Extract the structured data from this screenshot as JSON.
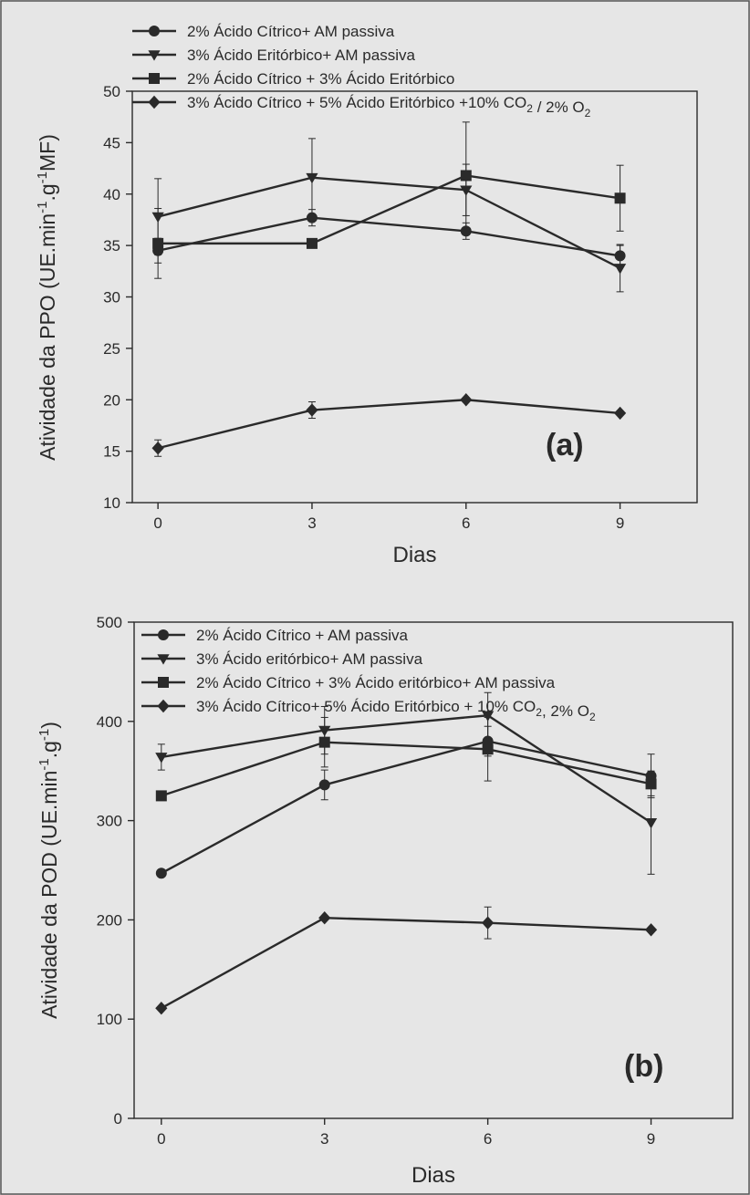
{
  "colors": {
    "background": "#e6e6e6",
    "ink": "#2a2a2a",
    "border": "#555555"
  },
  "chart_data": [
    {
      "type": "line",
      "panel_label": "(a)",
      "xlabel": "Dias",
      "ylabel_parts": [
        "Atividade da PPO (UE.min",
        "-1",
        ".g",
        "-1",
        "MF)"
      ],
      "xlim": [
        -0.5,
        10.5
      ],
      "ylim": [
        10,
        50
      ],
      "xticks": [
        0,
        3,
        6,
        9
      ],
      "yticks": [
        10,
        15,
        20,
        25,
        30,
        35,
        40,
        45,
        50
      ],
      "legend_position": "top-left",
      "x": [
        0,
        3,
        6,
        9
      ],
      "series": [
        {
          "name": "2% Ácido Cítrico+ AM passiva",
          "name_parts": [
            [
              "2% Ácido Cítrico+ AM passiva",
              ""
            ]
          ],
          "marker": "circle",
          "values": [
            34.5,
            37.7,
            36.4,
            34.0
          ],
          "errors": [
            1.2,
            0.8,
            0.8,
            1.0
          ]
        },
        {
          "name": "3% Ácido Eritórbico+ AM passiva",
          "name_parts": [
            [
              "3% Ácido Eritórbico+ AM passiva",
              ""
            ]
          ],
          "marker": "triangle-down",
          "values": [
            37.8,
            41.6,
            40.4,
            32.8
          ],
          "errors": [
            3.7,
            3.8,
            2.5,
            2.3
          ]
        },
        {
          "name": "2% Ácido Cítrico + 3% Ácido Eritórbico",
          "name_parts": [
            [
              "2% Ácido Cítrico + 3% Ácido Eritórbico",
              ""
            ]
          ],
          "marker": "square",
          "values": [
            35.2,
            35.2,
            41.8,
            39.6
          ],
          "errors": [
            3.4,
            0.0,
            5.2,
            3.2
          ]
        },
        {
          "name": "3% Ácido Cítrico + 5% Ácido Eritórbico +10% CO2 / 2% O2",
          "name_parts": [
            [
              "3% Ácido Cítrico + 5% Ácido Eritórbico +10% CO",
              "2"
            ],
            [
              " / 2% O",
              "2"
            ]
          ],
          "marker": "diamond",
          "values": [
            15.3,
            19.0,
            20.0,
            18.7
          ],
          "errors": [
            0.8,
            0.8,
            0.0,
            0.0
          ]
        }
      ]
    },
    {
      "type": "line",
      "panel_label": "(b)",
      "xlabel": "Dias",
      "ylabel_parts": [
        "Atividade da POD (UE.min",
        "-1",
        ".g",
        "-1",
        ")"
      ],
      "xlim": [
        -0.5,
        10.5
      ],
      "ylim": [
        0,
        500
      ],
      "xticks": [
        0,
        3,
        6,
        9
      ],
      "yticks": [
        0,
        100,
        200,
        300,
        400,
        500
      ],
      "legend_position": "top-left",
      "x": [
        0,
        3,
        6,
        9
      ],
      "series": [
        {
          "name": "2% Ácido Cítrico + AM passiva",
          "name_parts": [
            [
              "2% Ácido Cítrico + AM passiva",
              ""
            ]
          ],
          "marker": "circle",
          "values": [
            247,
            336,
            380,
            345
          ],
          "errors": [
            0,
            15,
            15,
            22
          ]
        },
        {
          "name": "3% Ácido eritórbico+ AM passiva",
          "name_parts": [
            [
              "3% Ácido eritórbico+ AM passiva",
              ""
            ]
          ],
          "marker": "triangle-down",
          "values": [
            364,
            391,
            406,
            298
          ],
          "errors": [
            13,
            24,
            23,
            52
          ]
        },
        {
          "name": "2% Ácido Cítrico + 3% Ácido eritórbico+ AM passiva",
          "name_parts": [
            [
              "2% Ácido Cítrico + 3% Ácido eritórbico+ AM passiva",
              ""
            ]
          ],
          "marker": "square",
          "values": [
            325,
            379,
            372,
            337
          ],
          "errors": [
            0,
            25,
            32,
            12
          ]
        },
        {
          "name": "3% Ácido Cítrico+ 5% Ácido Eritórbico + 10% CO2, 2% O2",
          "name_parts": [
            [
              "3% Ácido Cítrico+ 5% Ácido Eritórbico + 10% CO",
              "2"
            ],
            [
              ", 2% O",
              "2"
            ]
          ],
          "marker": "diamond",
          "values": [
            111,
            202,
            197,
            190
          ],
          "errors": [
            0,
            0,
            16,
            0
          ]
        }
      ]
    }
  ]
}
